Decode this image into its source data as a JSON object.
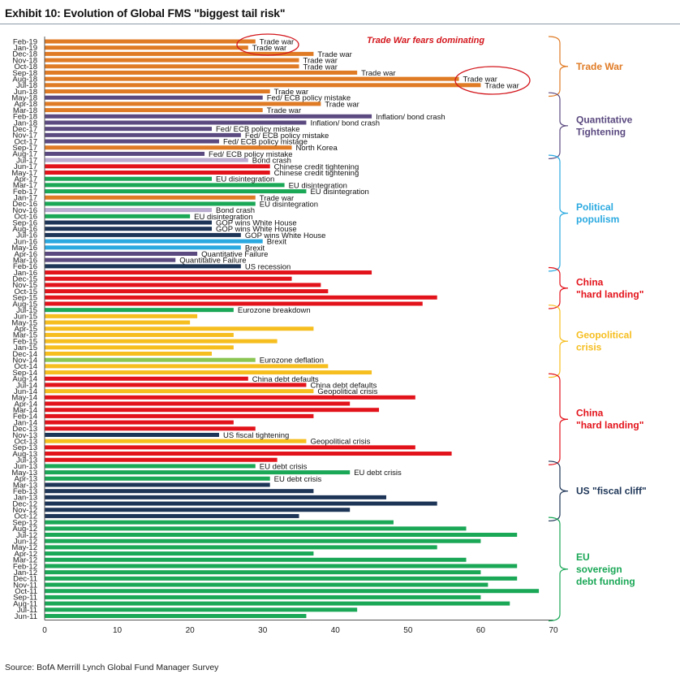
{
  "header": {
    "title": "Exhibit 10: Evolution of Global FMS \"biggest tail risk\""
  },
  "footer": {
    "source": "Source: BofA Merrill Lynch Global Fund Manager Survey"
  },
  "colors": {
    "trade_war": "#e07b25",
    "qt": "#5b4a80",
    "qt_light": "#b9acd0",
    "political": "#1d3557",
    "brexit": "#2aa9e0",
    "china": "#e3131b",
    "geopolitical": "#f6be1f",
    "eu": "#1aa756",
    "eu_light": "#8bc653",
    "annotation": "#d3161c"
  },
  "chart_data": {
    "type": "bar",
    "orientation": "horizontal",
    "title": "Exhibit 10: Evolution of Global FMS \"biggest tail risk\"",
    "xlabel": "",
    "ylabel": "",
    "xlim": [
      0,
      70
    ],
    "xticks": [
      "0",
      "10",
      "20",
      "30",
      "40",
      "50",
      "60",
      "70"
    ],
    "grid": false,
    "annotation": "Trade War fears dominating",
    "highlighted": [
      "Feb-19",
      "Jan-19",
      "Aug-18",
      "Jul-18"
    ],
    "categories": [
      "Feb-19",
      "Jan-19",
      "Dec-18",
      "Nov-18",
      "Oct-18",
      "Sep-18",
      "Aug-18",
      "Jul-18",
      "Jun-18",
      "May-18",
      "Apr-18",
      "Mar-18",
      "Feb-18",
      "Jan-18",
      "Dec-17",
      "Nov-17",
      "Oct-17",
      "Sep-17",
      "Aug-17",
      "Jul-17",
      "Jun-17",
      "May-17",
      "Apr-17",
      "Mar-17",
      "Feb-17",
      "Jan-17",
      "Dec-16",
      "Nov-16",
      "Oct-16",
      "Sep-16",
      "Aug-16",
      "Jul-16",
      "Jun-16",
      "May-16",
      "Apr-16",
      "Mar-16",
      "Feb-16",
      "Jan-16",
      "Dec-15",
      "Nov-15",
      "Oct-15",
      "Sep-15",
      "Aug-15",
      "Jul-15",
      "Jun-15",
      "May-15",
      "Apr-15",
      "Mar-15",
      "Feb-15",
      "Jan-15",
      "Dec-14",
      "Nov-14",
      "Oct-14",
      "Sep-14",
      "Aug-14",
      "Jul-14",
      "Jun-14",
      "May-14",
      "Apr-14",
      "Mar-14",
      "Feb-14",
      "Jan-14",
      "Dec-13",
      "Nov-13",
      "Oct-13",
      "Sep-13",
      "Aug-13",
      "Jul-13",
      "Jun-13",
      "May-13",
      "Apr-13",
      "Mar-13",
      "Feb-13",
      "Jan-13",
      "Dec-12",
      "Nov-12",
      "Oct-12",
      "Sep-12",
      "Aug-12",
      "Jul-12",
      "Jun-12",
      "May-12",
      "Apr-12",
      "Mar-12",
      "Feb-12",
      "Jan-12",
      "Dec-11",
      "Nov-11",
      "Oct-11",
      "Sep-11",
      "Aug-11",
      "Jul-11",
      "Jun-11"
    ],
    "values": [
      29,
      28,
      37,
      35,
      35,
      43,
      57,
      60,
      31,
      30,
      38,
      30,
      45,
      36,
      23,
      27,
      24,
      34,
      22,
      28,
      31,
      31,
      23,
      33,
      36,
      29,
      29,
      23,
      20,
      23,
      23,
      27,
      30,
      27,
      21,
      18,
      27,
      45,
      34,
      38,
      39,
      54,
      52,
      26,
      21,
      20,
      37,
      26,
      32,
      26,
      23,
      29,
      39,
      45,
      28,
      36,
      37,
      51,
      42,
      46,
      37,
      26,
      29,
      24,
      36,
      51,
      56,
      32,
      29,
      42,
      31,
      31,
      37,
      47,
      54,
      42,
      35,
      48,
      58,
      65,
      60,
      54,
      37,
      58,
      65,
      60,
      65,
      61,
      68,
      60,
      64,
      43,
      36
    ],
    "series_keys": [
      "trade_war",
      "trade_war",
      "trade_war",
      "trade_war",
      "trade_war",
      "trade_war",
      "trade_war",
      "trade_war",
      "trade_war",
      "qt",
      "trade_war",
      "trade_war",
      "qt",
      "qt",
      "qt",
      "qt",
      "qt",
      "trade_war",
      "qt",
      "qt_light",
      "china",
      "china",
      "eu",
      "eu",
      "eu",
      "trade_war",
      "eu",
      "qt_light",
      "eu",
      "political",
      "political",
      "political",
      "brexit",
      "brexit",
      "qt",
      "qt",
      "political",
      "china",
      "china",
      "china",
      "china",
      "china",
      "china",
      "eu",
      "geopolitical",
      "geopolitical",
      "geopolitical",
      "geopolitical",
      "geopolitical",
      "geopolitical",
      "geopolitical",
      "eu_light",
      "geopolitical",
      "geopolitical",
      "china",
      "china",
      "geopolitical",
      "china",
      "china",
      "china",
      "china",
      "china",
      "china",
      "political",
      "geopolitical",
      "china",
      "china",
      "china",
      "eu",
      "eu",
      "eu",
      "political",
      "political",
      "political",
      "political",
      "political",
      "political",
      "eu",
      "eu",
      "eu",
      "eu",
      "eu",
      "eu",
      "eu",
      "eu",
      "eu",
      "eu",
      "eu",
      "eu",
      "eu",
      "eu",
      "eu",
      "eu"
    ],
    "bar_labels": [
      "Trade war",
      "Trade war",
      "Trade war",
      "Trade war",
      "Trade war",
      "Trade war",
      "Trade war",
      "Trade war",
      "Trade war",
      "Fed/ ECB policy mistake",
      "Trade war",
      "Trade war",
      "Inflation/ bond crash",
      "Inflation/ bond crash",
      "Fed/ ECB policy mistake",
      "Fed/ ECB policy mistake",
      "Fed/ ECB policy mistage",
      "North Korea",
      "Fed/ ECB policy mistake",
      "Bond crash",
      "Chinese credit tightening",
      "Chinese credit tightening",
      "EU disintegration",
      "EU disintegration",
      "EU disintegration",
      "Trade war",
      "EU disintegration",
      "Bond crash",
      "EU disintegration",
      "GOP wins White House",
      "GOP wins White House",
      "GOP wins White House",
      "Brexit",
      "Brexit",
      "Quantitative Failure",
      "Quantitative Failure",
      "US recession",
      "",
      "",
      "",
      "",
      "",
      "",
      "Eurozone breakdown",
      "",
      "",
      "",
      "",
      "",
      "",
      "",
      "Eurozone deflation",
      "",
      "",
      "China debt defaults",
      "China debt defaults",
      "Geopolitical crisis",
      "",
      "",
      "",
      "",
      "",
      "",
      "US fiscal tightening",
      "Geopolitical crisis",
      "",
      "",
      "",
      "EU debt crisis",
      "EU debt crisis",
      "EU debt crisis",
      "",
      "",
      "",
      "",
      "",
      "",
      "",
      "",
      "",
      "",
      "",
      "",
      "",
      "",
      "",
      "",
      "",
      "",
      "",
      "",
      "",
      ""
    ],
    "groups": [
      {
        "label": "Trade War",
        "from": "Feb-19",
        "to": "Jun-18",
        "color_key": "trade_war"
      },
      {
        "label": "Quantitative Tightening",
        "from": "May-18",
        "to": "Aug-17",
        "color_key": "qt"
      },
      {
        "label": "Political populism",
        "from": "Jul-17",
        "to": "Feb-16",
        "color_key": "brexit"
      },
      {
        "label": "China \"hard landing\"",
        "from": "Jan-16",
        "to": "Aug-15",
        "color_key": "china"
      },
      {
        "label": "Geopolitical crisis",
        "from": "Jul-15",
        "to": "Sep-14",
        "color_key": "geopolitical"
      },
      {
        "label": "China \"hard landing\"",
        "from": "Aug-14",
        "to": "Jul-13",
        "color_key": "china"
      },
      {
        "label": "US \"fiscal cliff\"",
        "from": "Jun-13",
        "to": "Oct-12",
        "color_key": "political"
      },
      {
        "label": "EU sovereign debt funding",
        "from": "Sep-12",
        "to": "Jun-11",
        "color_key": "eu"
      }
    ]
  }
}
